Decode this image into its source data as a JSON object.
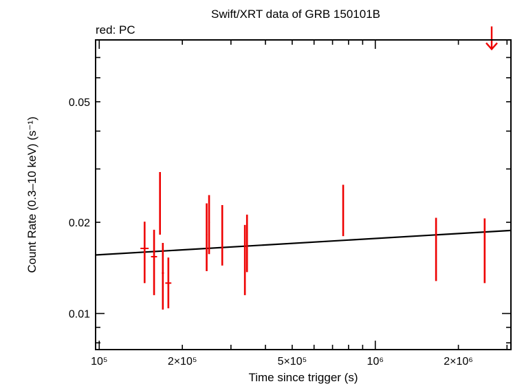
{
  "chart_data": {
    "type": "scatter",
    "title": "Swift/XRT data of GRB 150101B",
    "subtitle": "red: PC",
    "xlabel": "Time since trigger (s)",
    "ylabel": "Count Rate (0.3–10 keV) (s⁻¹)",
    "xscale": "log",
    "yscale": "log",
    "xlim": [
      97000,
      3100000
    ],
    "ylim": [
      0.0076,
      0.08
    ],
    "x_ticks": [
      {
        "value": 100000,
        "label": "10⁵"
      },
      {
        "value": 200000,
        "label": "2×10⁵"
      },
      {
        "value": 500000,
        "label": "5×10⁵"
      },
      {
        "value": 1000000,
        "label": "10⁶"
      },
      {
        "value": 2000000,
        "label": "2×10⁶"
      }
    ],
    "y_ticks": [
      {
        "value": 0.01,
        "label": "0.01"
      },
      {
        "value": 0.02,
        "label": "0.02"
      },
      {
        "value": 0.05,
        "label": "0.05"
      }
    ],
    "colors": {
      "data": "#ee0000",
      "fit": "#000000",
      "axes": "#000000"
    },
    "series": [
      {
        "mode": "PC",
        "color": "#ee0000",
        "points": [
          {
            "x": 146000,
            "xerr": [
              5000,
              5000
            ],
            "y": 0.0164,
            "yerr": [
              0.0126,
              0.0201
            ]
          },
          {
            "x": 158000,
            "xerr": [
              4000,
              4000
            ],
            "y": 0.0154,
            "yerr": [
              0.0115,
              0.0189
            ]
          },
          {
            "x": 166000,
            "xerr": [
              1000,
              1000
            ],
            "y": 0.0238,
            "yerr": [
              0.0182,
              0.0293
            ]
          },
          {
            "x": 170000,
            "xerr": [
              1500,
              1500
            ],
            "y": 0.0136,
            "yerr": [
              0.0103,
              0.0171
            ]
          },
          {
            "x": 178000,
            "xerr": [
              4500,
              4500
            ],
            "y": 0.0126,
            "yerr": [
              0.0104,
              0.0153
            ]
          },
          {
            "x": 245000,
            "xerr": [
              1500,
              1500
            ],
            "y": 0.0182,
            "yerr": [
              0.0138,
              0.0231
            ]
          },
          {
            "x": 250000,
            "xerr": [
              1500,
              1500
            ],
            "y": 0.02,
            "yerr": [
              0.0157,
              0.0246
            ]
          },
          {
            "x": 279000,
            "xerr": [
              1500,
              1500
            ],
            "y": 0.0186,
            "yerr": [
              0.0144,
              0.0228
            ]
          },
          {
            "x": 337000,
            "xerr": [
              1500,
              1500
            ],
            "y": 0.0152,
            "yerr": [
              0.0115,
              0.0196
            ]
          },
          {
            "x": 343000,
            "xerr": [
              1500,
              1500
            ],
            "y": 0.017,
            "yerr": [
              0.0137,
              0.0212
            ]
          },
          {
            "x": 765000,
            "xerr": [
              3000,
              3000
            ],
            "y": 0.0222,
            "yerr": [
              0.018,
              0.0266
            ]
          },
          {
            "x": 1660000,
            "xerr": [
              5000,
              5000
            ],
            "y": 0.0169,
            "yerr": [
              0.0128,
              0.0207
            ]
          },
          {
            "x": 2490000,
            "xerr": [
              6000,
              6000
            ],
            "y": 0.017,
            "yerr": [
              0.0126,
              0.0206
            ]
          }
        ],
        "upper_limits": [
          {
            "x": 2640000,
            "y": 0.079
          }
        ]
      }
    ],
    "fit_line": {
      "x": [
        97000,
        3100000
      ],
      "y": [
        0.0156,
        0.0188
      ]
    }
  }
}
